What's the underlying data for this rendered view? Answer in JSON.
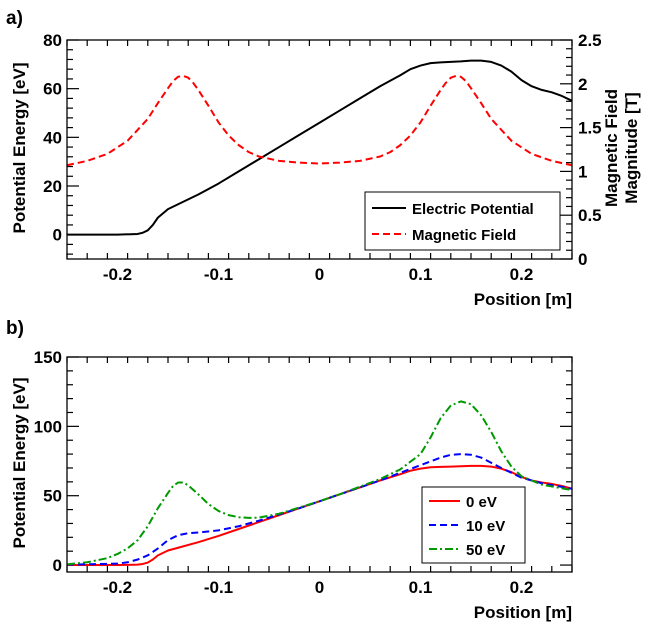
{
  "chart_data": [
    {
      "panel_label": "a)",
      "type": "line",
      "xlabel": "Position [m]",
      "ylabel": "Potential Energy [eV]",
      "y2label_lines": [
        "Magnetic Field",
        "Magnitude [T]"
      ],
      "xlim": [
        -0.25,
        0.25
      ],
      "ylim": [
        -10,
        80
      ],
      "y2lim": [
        0,
        2.5
      ],
      "xticks": [
        -0.2,
        -0.1,
        0,
        0.1,
        0.2
      ],
      "xtick_labels": [
        "-0.2",
        "-0.1",
        "0",
        "0.1",
        "0.2"
      ],
      "yticks": [
        0,
        20,
        40,
        60,
        80
      ],
      "ytick_labels": [
        "0",
        "20",
        "40",
        "60",
        "80"
      ],
      "y2ticks": [
        0,
        0.5,
        1,
        1.5,
        2,
        2.5
      ],
      "y2tick_labels": [
        "0",
        "0.5",
        "1",
        "1.5",
        "2",
        "2.5"
      ],
      "grid": false,
      "legend_position": "bottom-right",
      "series": [
        {
          "name": "Electric Potential",
          "color": "#000000",
          "dash": "solid",
          "axis": "left",
          "x": [
            -0.25,
            -0.2,
            -0.18,
            -0.175,
            -0.17,
            -0.165,
            -0.16,
            -0.15,
            -0.14,
            -0.12,
            -0.1,
            -0.08,
            -0.06,
            -0.04,
            -0.02,
            0,
            0.02,
            0.04,
            0.06,
            0.08,
            0.09,
            0.1,
            0.11,
            0.12,
            0.13,
            0.14,
            0.15,
            0.16,
            0.17,
            0.18,
            0.19,
            0.2,
            0.21,
            0.22,
            0.23,
            0.24,
            0.25
          ],
          "y": [
            0,
            0,
            0.3,
            0.8,
            1.8,
            4,
            7,
            10.5,
            12.5,
            16.5,
            21,
            26,
            31,
            36,
            41,
            46,
            51,
            56,
            61,
            65.5,
            68,
            69.5,
            70.5,
            70.8,
            71,
            71.2,
            71.5,
            71.5,
            71,
            69.5,
            67,
            63.5,
            61,
            59.5,
            58.5,
            57,
            55
          ]
        },
        {
          "name": "Magnetic Field",
          "color": "#ff0000",
          "dash": "dashed",
          "axis": "right",
          "x": [
            -0.25,
            -0.23,
            -0.21,
            -0.19,
            -0.17,
            -0.16,
            -0.15,
            -0.145,
            -0.14,
            -0.135,
            -0.13,
            -0.125,
            -0.12,
            -0.11,
            -0.1,
            -0.09,
            -0.08,
            -0.07,
            -0.06,
            -0.04,
            -0.02,
            0,
            0.02,
            0.04,
            0.06,
            0.07,
            0.08,
            0.09,
            0.1,
            0.11,
            0.12,
            0.125,
            0.13,
            0.135,
            0.14,
            0.145,
            0.15,
            0.16,
            0.17,
            0.19,
            0.21,
            0.23,
            0.25
          ],
          "y": [
            1.07,
            1.12,
            1.2,
            1.35,
            1.6,
            1.78,
            1.95,
            2.03,
            2.08,
            2.09,
            2.07,
            2.01,
            1.93,
            1.75,
            1.56,
            1.41,
            1.3,
            1.22,
            1.17,
            1.12,
            1.1,
            1.09,
            1.1,
            1.12,
            1.17,
            1.22,
            1.3,
            1.41,
            1.56,
            1.75,
            1.93,
            2.01,
            2.07,
            2.09,
            2.08,
            2.03,
            1.95,
            1.78,
            1.6,
            1.35,
            1.2,
            1.12,
            1.07
          ]
        }
      ]
    },
    {
      "panel_label": "b)",
      "type": "line",
      "xlabel": "Position [m]",
      "ylabel": "Potential Energy [eV]",
      "xlim": [
        -0.25,
        0.25
      ],
      "ylim": [
        -5,
        150
      ],
      "xticks": [
        -0.2,
        -0.1,
        0,
        0.1,
        0.2
      ],
      "xtick_labels": [
        "-0.2",
        "-0.1",
        "0",
        "0.1",
        "0.2"
      ],
      "yticks": [
        0,
        50,
        100,
        150
      ],
      "ytick_labels": [
        "0",
        "50",
        "100",
        "150"
      ],
      "grid": false,
      "legend_position": "bottom-right",
      "series": [
        {
          "name": "0 eV",
          "color": "#ff0000",
          "dash": "solid",
          "x": [
            -0.25,
            -0.2,
            -0.18,
            -0.175,
            -0.17,
            -0.165,
            -0.16,
            -0.15,
            -0.14,
            -0.12,
            -0.1,
            -0.08,
            -0.06,
            -0.04,
            -0.02,
            0,
            0.02,
            0.04,
            0.06,
            0.08,
            0.09,
            0.1,
            0.11,
            0.12,
            0.13,
            0.14,
            0.15,
            0.16,
            0.17,
            0.18,
            0.19,
            0.2,
            0.21,
            0.22,
            0.23,
            0.24,
            0.25
          ],
          "y": [
            0,
            0,
            0.3,
            0.8,
            1.8,
            4,
            7,
            10.5,
            12.5,
            16.5,
            21,
            26,
            31,
            36,
            41,
            46,
            51,
            56,
            61,
            65.5,
            68,
            69.5,
            70.5,
            70.8,
            71,
            71.2,
            71.5,
            71.5,
            71,
            69.5,
            67,
            63.5,
            61,
            59.5,
            58.5,
            57,
            55
          ]
        },
        {
          "name": "10 eV",
          "color": "#0000ff",
          "dash": "dashed",
          "x": [
            -0.25,
            -0.2,
            -0.19,
            -0.18,
            -0.17,
            -0.16,
            -0.15,
            -0.14,
            -0.13,
            -0.12,
            -0.1,
            -0.08,
            -0.06,
            -0.04,
            -0.02,
            0,
            0.02,
            0.04,
            0.06,
            0.08,
            0.1,
            0.12,
            0.13,
            0.14,
            0.15,
            0.16,
            0.18,
            0.2,
            0.22,
            0.25
          ],
          "y": [
            0.3,
            1,
            2,
            4,
            7,
            12,
            18,
            21.5,
            23,
            23.5,
            25,
            28,
            32,
            36.5,
            41,
            46,
            51,
            56,
            61,
            66.5,
            72,
            77.5,
            79.5,
            80,
            79.5,
            77.5,
            70,
            63,
            59,
            55
          ]
        },
        {
          "name": "50 eV",
          "color": "#009900",
          "dash": "dashdot",
          "x": [
            -0.25,
            -0.23,
            -0.21,
            -0.2,
            -0.19,
            -0.18,
            -0.17,
            -0.16,
            -0.15,
            -0.145,
            -0.14,
            -0.135,
            -0.13,
            -0.12,
            -0.11,
            -0.1,
            -0.09,
            -0.08,
            -0.07,
            -0.06,
            -0.04,
            -0.02,
            0,
            0.02,
            0.04,
            0.06,
            0.08,
            0.1,
            0.11,
            0.12,
            0.13,
            0.14,
            0.15,
            0.16,
            0.17,
            0.18,
            0.19,
            0.2,
            0.22,
            0.25
          ],
          "y": [
            0.5,
            2,
            5,
            8,
            12,
            18,
            28,
            41,
            52,
            57,
            59.5,
            59.5,
            57.5,
            51,
            44,
            39,
            36,
            34.5,
            34,
            34.2,
            37,
            41.5,
            46,
            51,
            56.5,
            62,
            69,
            80,
            92,
            106,
            115,
            118,
            116,
            108,
            96,
            82,
            71,
            64,
            58,
            54
          ]
        }
      ]
    }
  ]
}
